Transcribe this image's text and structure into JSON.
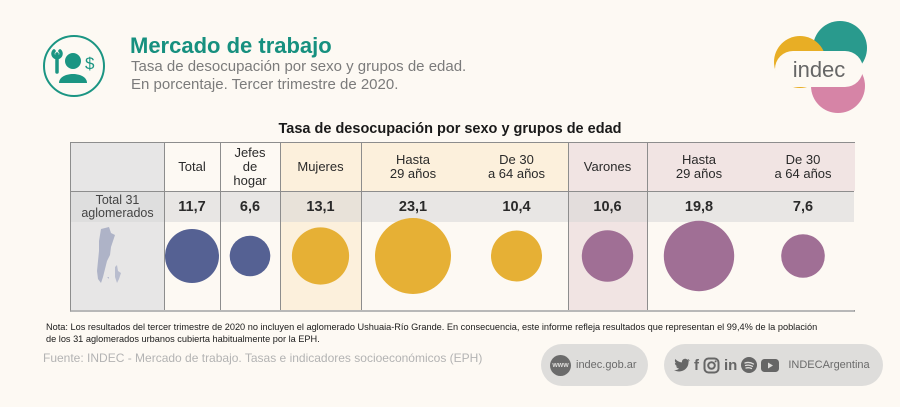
{
  "header": {
    "title": "Mercado de trabajo",
    "subtitle_line1": "Tasa de desocupación por sexo y grupos de edad.",
    "subtitle_line2": "En porcentaje. Tercer trimestre de 2020.",
    "logo_text": "indec"
  },
  "colors": {
    "teal": "#16907f",
    "total": "#556193",
    "mujeres": "#e6b035",
    "varones": "#a06f95",
    "mujeres_band": "#fcf0dc",
    "varones_band": "#f1e4e3"
  },
  "chart_data": {
    "type": "table",
    "title": "Tasa de desocupación por sexo y grupos de edad",
    "row_label": "Total 31\naglomerados",
    "columns": [
      {
        "label": "Total",
        "group": "total",
        "value": 11.7,
        "display": "11,7"
      },
      {
        "label": "Jefes\nde\nhogar",
        "group": "total",
        "value": 6.6,
        "display": "6,6"
      },
      {
        "label": "Mujeres",
        "group": "mujeres",
        "value": 13.1,
        "display": "13,1"
      },
      {
        "label": "Hasta\n29 años",
        "group": "mujeres",
        "value": 23.1,
        "display": "23,1"
      },
      {
        "label": "De 30\na 64 años",
        "group": "mujeres",
        "value": 10.4,
        "display": "10,4"
      },
      {
        "label": "Varones",
        "group": "varones",
        "value": 10.6,
        "display": "10,6"
      },
      {
        "label": "Hasta\n29 años",
        "group": "varones",
        "value": 19.8,
        "display": "19,8"
      },
      {
        "label": "De 30\na 64 años",
        "group": "varones",
        "value": 7.6,
        "display": "7,6"
      }
    ],
    "unit": "%"
  },
  "footer": {
    "note_line1": "Nota: Los resultados del tercer trimestre de 2020 no incluyen el aglomerado Ushuaia-Río Grande. En consecuencia, este informe refleja resultados que representan el 99,4% de la población",
    "note_line2": "de los 31 aglomerados urbanos cubierta habitualmente por la EPH.",
    "source": "Fuente: INDEC - Mercado de trabajo. Tasas e indicadores socioeconómicos (EPH)",
    "website_badge": "www",
    "website": "indec.gob.ar",
    "social_handle": "INDECArgentina",
    "social_icons": [
      "twitter-icon",
      "facebook-icon",
      "instagram-icon",
      "linkedin-icon",
      "spotify-icon",
      "youtube-icon"
    ]
  }
}
